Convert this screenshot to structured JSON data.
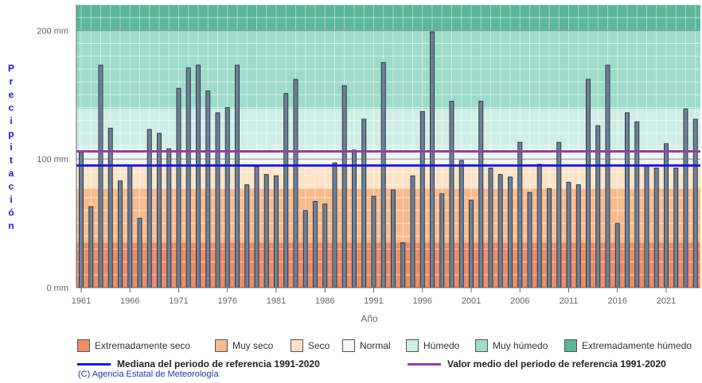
{
  "chart_data": {
    "type": "bar",
    "xlabel": "Año",
    "ylabel": "Precipitación",
    "ylim": [
      0,
      220
    ],
    "y_ticks": [
      {
        "value": 0,
        "label": "0 mm"
      },
      {
        "value": 100,
        "label": "100 mm"
      },
      {
        "value": 200,
        "label": "200 mm"
      }
    ],
    "x_ticks": [
      1961,
      1966,
      1971,
      1976,
      1981,
      1986,
      1991,
      1996,
      2001,
      2006,
      2011,
      2016,
      2021
    ],
    "years": [
      1961,
      1962,
      1963,
      1964,
      1965,
      1966,
      1967,
      1968,
      1969,
      1970,
      1971,
      1972,
      1973,
      1974,
      1975,
      1976,
      1977,
      1978,
      1979,
      1980,
      1981,
      1982,
      1983,
      1984,
      1985,
      1986,
      1987,
      1988,
      1989,
      1990,
      1991,
      1992,
      1993,
      1994,
      1995,
      1996,
      1997,
      1998,
      1999,
      2000,
      2001,
      2002,
      2003,
      2004,
      2005,
      2006,
      2007,
      2008,
      2009,
      2010,
      2011,
      2012,
      2013,
      2014,
      2015,
      2016,
      2017,
      2018,
      2019,
      2020,
      2021,
      2022,
      2023,
      2024
    ],
    "values": [
      105,
      63,
      173,
      124,
      83,
      95,
      54,
      123,
      120,
      108,
      155,
      171,
      173,
      153,
      136,
      140,
      173,
      80,
      94,
      88,
      87,
      151,
      162,
      60,
      67,
      65,
      97,
      157,
      107,
      131,
      71,
      175,
      76,
      35,
      87,
      137,
      199,
      73,
      145,
      99,
      68,
      145,
      93,
      88,
      86,
      113,
      74,
      96,
      77,
      113,
      82,
      80,
      162,
      126,
      173,
      50,
      136,
      129,
      95,
      93,
      112,
      93,
      139,
      131
    ],
    "bands": [
      {
        "label": "Extremadamente seco",
        "from": 0,
        "to": 35,
        "color": "#ec8d67"
      },
      {
        "label": "Muy seco",
        "from": 35,
        "to": 77,
        "color": "#f7bb8e"
      },
      {
        "label": "Seco",
        "from": 77,
        "to": 94,
        "color": "#fde3c7"
      },
      {
        "label": "Normal",
        "from": 94,
        "to": 108,
        "color": "#f5f5f5"
      },
      {
        "label": "Húmedo",
        "from": 108,
        "to": 139,
        "color": "#cfeee7"
      },
      {
        "label": "Muy húmedo",
        "from": 139,
        "to": 200,
        "color": "#9edbca"
      },
      {
        "label": "Extremadamente húmedo",
        "from": 200,
        "to": 220,
        "color": "#5ab79a"
      }
    ],
    "reference_lines": [
      {
        "label": "Mediana del periodo de referencia 1991-2020",
        "value": 95,
        "color": "#1a1acc"
      },
      {
        "label": "Valor medio del periodo de referencia 1991-2020",
        "value": 106,
        "color": "#9a3aa8"
      }
    ],
    "bar_color": "#6f8096",
    "legend_position": "bottom",
    "grid": true
  },
  "credit": "(C) Agencia Estatal de Meteorología"
}
